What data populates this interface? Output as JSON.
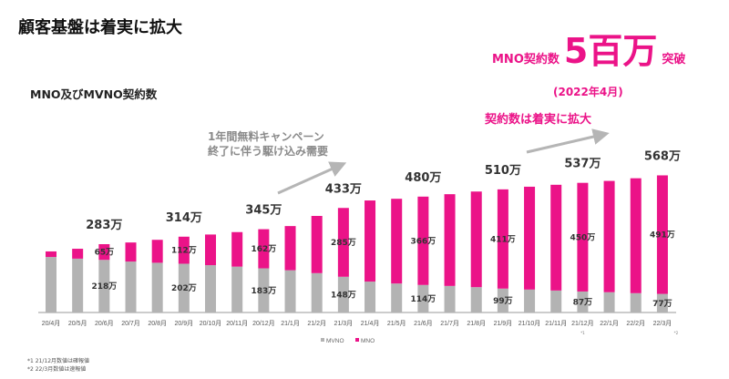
{
  "title": "顧客基盤は着実に拡大",
  "subtitle": "MNO及びMVNO契約数",
  "annotation": {
    "line1": "1年間無料キャンペーン",
    "line2": "終了に伴う駆け込み需要"
  },
  "callout": {
    "prefix": "MNO契約数",
    "big": "5百万",
    "suffix": "突破",
    "date": "(2022年4月)",
    "trend": "契約数は着実に拡大"
  },
  "footnotes": [
    "*1 21/12月数値は確報値",
    "*2 22/3月数値は速報値"
  ],
  "colors": {
    "mvno": "#b3b3b3",
    "mno": "#eb1388"
  },
  "chart_data": {
    "type": "bar",
    "stacked": true,
    "unit": "万",
    "categories": [
      "20/4月",
      "20/5月",
      "20/6月",
      "20/7月",
      "20/8月",
      "20/9月",
      "20/10月",
      "20/11月",
      "20/12月",
      "21/1月",
      "21/2月",
      "21/3月",
      "21/4月",
      "21/5月",
      "21/6月",
      "21/7月",
      "21/8月",
      "21/9月",
      "21/10月",
      "21/11月",
      "21/12月",
      "22/1月",
      "22/2月",
      "22/3月"
    ],
    "category_markers": {
      "21/12月": "*1",
      "22/3月": "*2"
    },
    "series": [
      {
        "name": "MVNO",
        "values": [
          230,
          223,
          218,
          211,
          206,
          202,
          196,
          190,
          183,
          175,
          163,
          148,
          128,
          120,
          114,
          110,
          105,
          99,
          95,
          91,
          87,
          84,
          80,
          77
        ]
      },
      {
        "name": "MNO",
        "values": [
          23,
          41,
          65,
          79,
          95,
          112,
          127,
          143,
          162,
          183,
          237,
          285,
          336,
          351,
          366,
          380,
          396,
          411,
          426,
          438,
          450,
          461,
          476,
          491
        ]
      }
    ],
    "labels": [
      {
        "category": "20/6月",
        "mvno": "218万",
        "mno": "65万",
        "total": "283万"
      },
      {
        "category": "20/9月",
        "mvno": "202万",
        "mno": "112万",
        "total": "314万"
      },
      {
        "category": "20/12月",
        "mvno": "183万",
        "mno": "162万",
        "total": "345万"
      },
      {
        "category": "21/3月",
        "mvno": "148万",
        "mno": "285万",
        "total": "433万"
      },
      {
        "category": "21/6月",
        "mvno": "114万",
        "mno": "366万",
        "total": "480万"
      },
      {
        "category": "21/9月",
        "mvno": "99万",
        "mno": "411万",
        "total": "510万"
      },
      {
        "category": "21/12月",
        "mvno": "87万",
        "mno": "450万",
        "total": "537万"
      },
      {
        "category": "22/3月",
        "mvno": "77万",
        "mno": "491万",
        "total": "568万"
      }
    ],
    "legend": {
      "position": "bottom-center",
      "entries": [
        "MVNO",
        "MNO"
      ]
    },
    "grid": false
  }
}
